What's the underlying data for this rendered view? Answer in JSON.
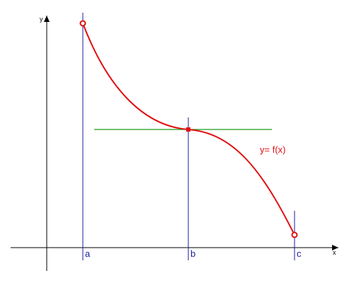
{
  "axes": {
    "x_label": "x",
    "y_label": "y"
  },
  "points": {
    "a": "a",
    "b": "b",
    "c": "c"
  },
  "curve": {
    "label": "y= f(x)"
  },
  "colors": {
    "axis": "#000000",
    "guide": "#1a1aa6",
    "curve": "#e01010",
    "tangent": "#1a9a1a",
    "label_blue": "#1a1aa6",
    "label_red": "#e01010"
  }
}
